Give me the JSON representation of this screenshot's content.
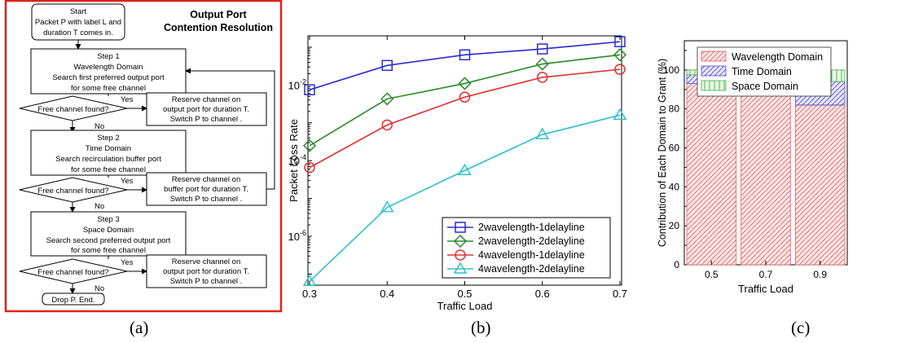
{
  "flowchart": {
    "title_line1": "Output Port",
    "title_line2": "Contention Resolution",
    "start": [
      "Start",
      "Packet P with label L and",
      "duration T comes in."
    ],
    "step1": [
      "Step 1",
      "Wavelength Domain",
      "Search first preferred output port",
      "for some free channel"
    ],
    "decision1": "Free channel found?",
    "reserve1": [
      "Reserve channel on",
      "output port for duration T.",
      "Switch P to channel ."
    ],
    "step2": [
      "Step 2",
      "Time Domain",
      "Search recirculation buffer port",
      "for some free channel"
    ],
    "decision2": "Free channel found?",
    "reserve2": [
      "Reserve channel on",
      "buffer port for duration T.",
      "Switch P to channel ."
    ],
    "step3": [
      "Step 3",
      "Space Domain",
      "Search second preferred output port",
      "for some free channel"
    ],
    "decision3": "Free channel found?",
    "reserve3": [
      "Reserve channel on",
      "output port for duration T.",
      "Switch P to channel ."
    ],
    "end": "Drop P. End.",
    "yes": "Yes",
    "no": "No"
  },
  "captions": {
    "a": "(a)",
    "b": "(b)",
    "c": "(c)"
  },
  "chart_data": [
    {
      "type": "line",
      "xlabel": "Traffic Load",
      "ylabel": "Packet Loss Rate",
      "y_scale": "log",
      "ylim": [
        5.1e-08,
        0.2
      ],
      "xlim": [
        0.3,
        0.7
      ],
      "x_ticks": [
        "0.3",
        "0.4",
        "0.5",
        "0.6",
        "0.7"
      ],
      "y_ticks": [
        {
          "value": 0.01,
          "base": "10",
          "exp": "-2"
        },
        {
          "value": 0.0001,
          "base": "10",
          "exp": "-4"
        },
        {
          "value": 1e-06,
          "base": "10",
          "exp": "-6"
        }
      ],
      "legend_position": "bottom-right",
      "x": [
        0.3,
        0.4,
        0.5,
        0.6,
        0.7
      ],
      "series": [
        {
          "name": "2wavelength-1delayline",
          "marker": "square",
          "color": "#2b2bd1",
          "values": [
            0.0075,
            0.033,
            0.063,
            0.09,
            0.14
          ]
        },
        {
          "name": "2wavelength-2delayline",
          "marker": "diamond",
          "color": "#2a8a2a",
          "values": [
            0.00025,
            0.0043,
            0.011,
            0.036,
            0.063
          ]
        },
        {
          "name": "4wavelength-1delayline",
          "marker": "circle",
          "color": "#e03030",
          "values": [
            6.6e-05,
            0.00088,
            0.0048,
            0.016,
            0.026
          ]
        },
        {
          "name": "4wavelength-2delayline",
          "marker": "triangle",
          "color": "#30c0c8",
          "values": [
            6.4e-08,
            5.8e-06,
            5.5e-05,
            0.00049,
            0.0016
          ]
        }
      ]
    },
    {
      "type": "bar",
      "stacked": true,
      "xlabel": "Traffic Load",
      "ylabel": "Contribution of Each Domain to Grant (%)",
      "ylim": [
        0,
        115
      ],
      "y_ticks": [
        "0",
        "20",
        "40",
        "60",
        "80",
        "100"
      ],
      "categories": [
        "0.5",
        "0.7",
        "0.9"
      ],
      "legend_position": "top-right",
      "series": [
        {
          "name": "Wavelength Domain",
          "color": "#e06060",
          "values": [
            93,
            87,
            82
          ]
        },
        {
          "name": "Time Domain",
          "color": "#4a4ad0",
          "values": [
            4.5,
            9,
            12
          ]
        },
        {
          "name": "Space Domain",
          "color": "#40b040",
          "values": [
            2.5,
            4,
            6
          ]
        }
      ]
    }
  ]
}
